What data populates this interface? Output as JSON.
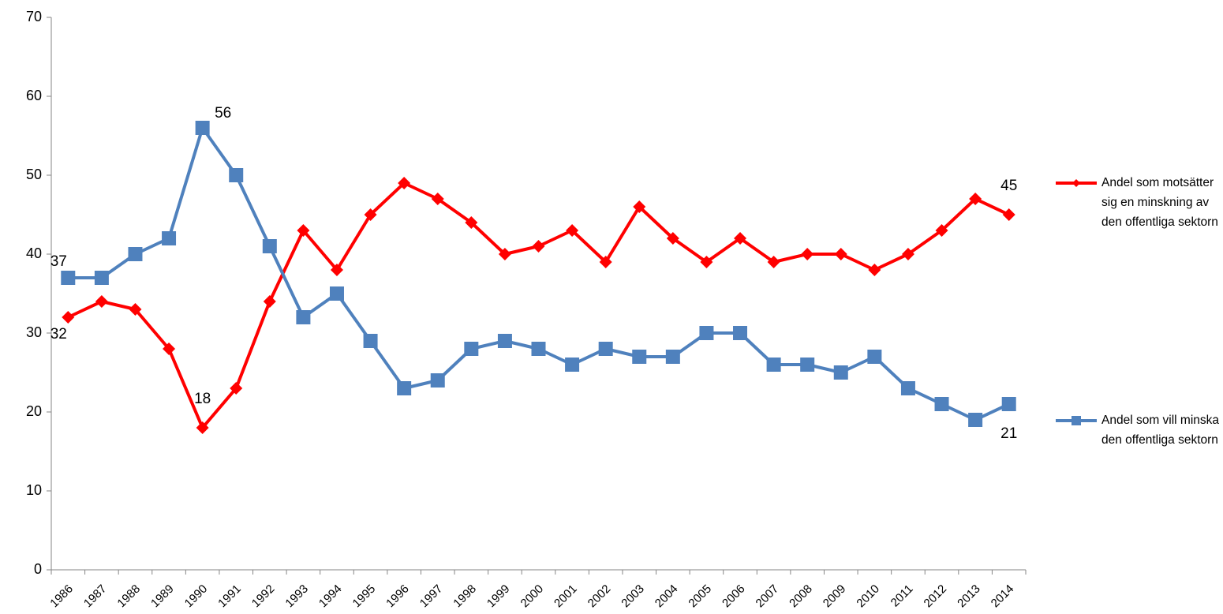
{
  "chart_data": {
    "type": "line",
    "categories": [
      "1986",
      "1987",
      "1988",
      "1989",
      "1990",
      "1991",
      "1992",
      "1993",
      "1994",
      "1995",
      "1996",
      "1997",
      "1998",
      "1999",
      "2000",
      "2001",
      "2002",
      "2003",
      "2004",
      "2005",
      "2006",
      "2007",
      "2008",
      "2009",
      "2010",
      "2011",
      "2012",
      "2013",
      "2014"
    ],
    "series": [
      {
        "name": "Andel som motsätter sig en minskning av den offentliga sektorn",
        "color": "#ff0000",
        "marker": "diamond",
        "values": [
          32,
          34,
          33,
          28,
          18,
          23,
          34,
          43,
          38,
          45,
          49,
          47,
          44,
          40,
          41,
          43,
          39,
          46,
          42,
          39,
          42,
          39,
          40,
          40,
          38,
          40,
          43,
          47,
          45
        ]
      },
      {
        "name": "Andel som vill minska den offentliga sektorn",
        "color": "#4f81bd",
        "marker": "square",
        "values": [
          37,
          37,
          40,
          42,
          56,
          50,
          41,
          32,
          35,
          29,
          23,
          24,
          28,
          29,
          28,
          26,
          28,
          27,
          27,
          30,
          30,
          26,
          26,
          25,
          27,
          23,
          21,
          19,
          21
        ]
      }
    ],
    "ylim": [
      0,
      70
    ],
    "yticks": [
      0,
      10,
      20,
      30,
      40,
      50,
      60,
      70
    ],
    "grid": false,
    "legend": "right"
  }
}
